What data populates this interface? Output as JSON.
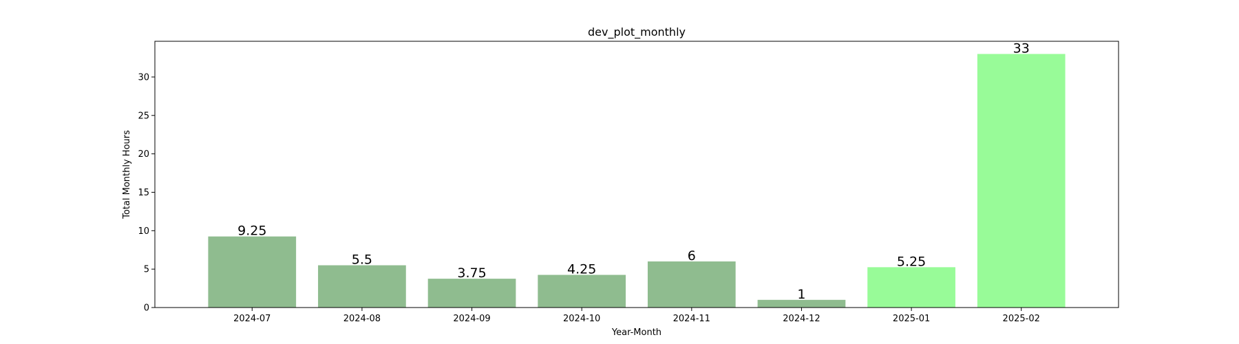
{
  "chart_data": {
    "type": "bar",
    "title": "dev_plot_monthly",
    "xlabel": "Year-Month",
    "ylabel": "Total Monthly Hours",
    "categories": [
      "2024-07",
      "2024-08",
      "2024-09",
      "2024-10",
      "2024-11",
      "2024-12",
      "2025-01",
      "2025-02"
    ],
    "values": [
      9.25,
      5.5,
      3.75,
      4.25,
      6,
      1,
      5.25,
      33
    ],
    "data_labels": [
      "9.25",
      "5.5",
      "3.75",
      "4.25",
      "6",
      "1",
      "5.25",
      "33"
    ],
    "bar_colors": [
      "#8fbc8f",
      "#8fbc8f",
      "#8fbc8f",
      "#8fbc8f",
      "#8fbc8f",
      "#8fbc8f",
      "#98fb98",
      "#98fb98"
    ],
    "yticks": [
      0,
      5,
      10,
      15,
      20,
      25,
      30
    ],
    "ylim": [
      0,
      34.65
    ],
    "grid": false,
    "legend": "none"
  }
}
